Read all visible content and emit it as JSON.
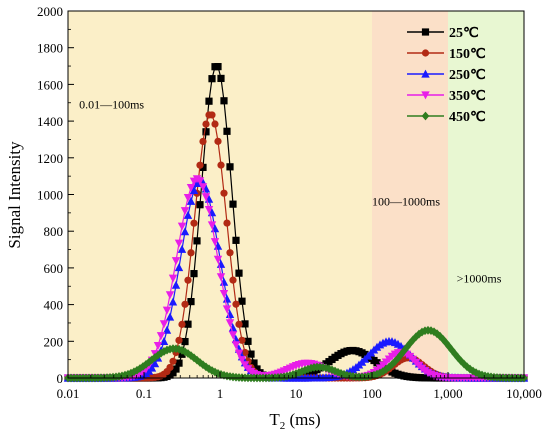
{
  "chart_data": {
    "type": "line",
    "xlabel": "T",
    "xlabel_sub": "2",
    "xlabel_unit": " (ms)",
    "ylabel": "Signal Intensity",
    "xscale": "log",
    "xlim": [
      0.01,
      10000
    ],
    "ylim": [
      0,
      2000
    ],
    "x_ticks": [
      {
        "value": 0.01,
        "label": "0.01"
      },
      {
        "value": 0.1,
        "label": "0.1"
      },
      {
        "value": 1,
        "label": "1"
      },
      {
        "value": 10,
        "label": "10"
      },
      {
        "value": 100,
        "label": "100"
      },
      {
        "value": 1000,
        "label": "1,000"
      },
      {
        "value": 10000,
        "label": "10,000"
      }
    ],
    "y_ticks": [
      {
        "value": 0,
        "label": "0"
      },
      {
        "value": 200,
        "label": "200"
      },
      {
        "value": 400,
        "label": "400"
      },
      {
        "value": 600,
        "label": "600"
      },
      {
        "value": 800,
        "label": "800"
      },
      {
        "value": 1000,
        "label": "1000"
      },
      {
        "value": 1200,
        "label": "1200"
      },
      {
        "value": 1400,
        "label": "1400"
      },
      {
        "value": 1600,
        "label": "1600"
      },
      {
        "value": 1800,
        "label": "1800"
      },
      {
        "value": 2000,
        "label": "2000"
      }
    ],
    "regions": [
      {
        "x0": 0.01,
        "x1": 100,
        "color": "#fbefc8",
        "label": "0.01—100ms",
        "label_x": 0.014,
        "label_y": 1470
      },
      {
        "x0": 100,
        "x1": 1000,
        "color": "#fbe0c8",
        "label": "100—1000ms",
        "label_x": 100,
        "label_y": 940
      },
      {
        "x0": 1000,
        "x1": 10000,
        "color": "#e8f7d2",
        "label": ">1000ms",
        "label_x": 1300,
        "label_y": 520
      }
    ],
    "legend_position": "top-right",
    "series": [
      {
        "name": "25℃",
        "color": "#000000",
        "marker": "square",
        "peaks": [
          {
            "amp": 1705,
            "center": 0.9,
            "width": 0.2
          },
          {
            "amp": 150,
            "center": 55,
            "width": 0.3
          }
        ]
      },
      {
        "name": "150℃",
        "color": "#b22a14",
        "marker": "circle",
        "peaks": [
          {
            "amp": 1440,
            "center": 0.75,
            "width": 0.21
          },
          {
            "amp": 110,
            "center": 300,
            "width": 0.2
          }
        ]
      },
      {
        "name": "250℃",
        "color": "#1a1aff",
        "marker": "triangle-up",
        "peaks": [
          {
            "amp": 1075,
            "center": 0.55,
            "width": 0.26
          },
          {
            "amp": 200,
            "center": 170,
            "width": 0.28
          }
        ]
      },
      {
        "name": "350℃",
        "color": "#e81ee8",
        "marker": "triangle-down",
        "peaks": [
          {
            "amp": 1085,
            "center": 0.5,
            "width": 0.27
          },
          {
            "amp": 80,
            "center": 14,
            "width": 0.25
          },
          {
            "amp": 140,
            "center": 240,
            "width": 0.2
          }
        ]
      },
      {
        "name": "450℃",
        "color": "#2f7d1f",
        "marker": "diamond",
        "peaks": [
          {
            "amp": 160,
            "center": 0.25,
            "width": 0.3
          },
          {
            "amp": 60,
            "center": 20,
            "width": 0.22
          },
          {
            "amp": 260,
            "center": 550,
            "width": 0.3
          }
        ]
      }
    ]
  }
}
